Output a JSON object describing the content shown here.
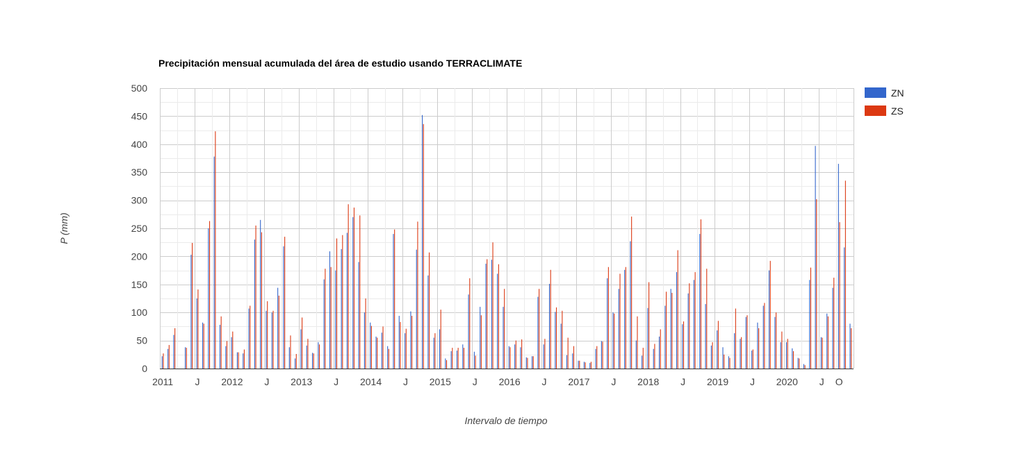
{
  "chart_data": {
    "type": "bar",
    "title": "Precipitación mensual acumulada del área de estudio usando TERRACLIMATE",
    "xlabel": "Intervalo de tiempo",
    "ylabel": "P (mm)",
    "ylim": [
      0,
      500
    ],
    "yticks": [
      "0",
      "50",
      "100",
      "150",
      "200",
      "250",
      "300",
      "350",
      "400",
      "450",
      "500"
    ],
    "grid": true,
    "legend_position": "right",
    "x_start": "2011-01",
    "x_tick_labels": [
      {
        "month": "2011-01",
        "label": "2011"
      },
      {
        "month": "2011-07",
        "label": "J"
      },
      {
        "month": "2012-01",
        "label": "2012"
      },
      {
        "month": "2012-07",
        "label": "J"
      },
      {
        "month": "2013-01",
        "label": "2013"
      },
      {
        "month": "2013-07",
        "label": "J"
      },
      {
        "month": "2014-01",
        "label": "2014"
      },
      {
        "month": "2014-07",
        "label": "J"
      },
      {
        "month": "2015-01",
        "label": "2015"
      },
      {
        "month": "2015-07",
        "label": "J"
      },
      {
        "month": "2016-01",
        "label": "2016"
      },
      {
        "month": "2016-07",
        "label": "J"
      },
      {
        "month": "2017-01",
        "label": "2017"
      },
      {
        "month": "2017-07",
        "label": "J"
      },
      {
        "month": "2018-01",
        "label": "2018"
      },
      {
        "month": "2018-07",
        "label": "J"
      },
      {
        "month": "2019-01",
        "label": "2019"
      },
      {
        "month": "2019-07",
        "label": "J"
      },
      {
        "month": "2020-01",
        "label": "2020"
      },
      {
        "month": "2020-07",
        "label": "J"
      },
      {
        "month": "2020-10",
        "label": "O"
      }
    ],
    "series": [
      {
        "name": "ZN",
        "color": "#3366cc",
        "values": [
          22,
          35,
          60,
          0,
          38,
          203,
          125,
          82,
          250,
          378,
          78,
          40,
          56,
          29,
          27,
          107,
          230,
          265,
          103,
          100,
          144,
          218,
          38,
          18,
          70,
          41,
          28,
          47,
          159,
          209,
          175,
          213,
          242,
          270,
          190,
          100,
          82,
          57,
          64,
          40,
          240,
          94,
          63,
          102,
          212,
          452,
          166,
          55,
          70,
          18,
          31,
          32,
          43,
          132,
          30,
          110,
          187,
          194,
          169,
          110,
          40,
          43,
          38,
          20,
          22,
          128,
          43,
          151,
          101,
          80,
          24,
          27,
          14,
          12,
          10,
          35,
          49,
          161,
          100,
          142,
          176,
          227,
          50,
          23,
          108,
          35,
          57,
          112,
          142,
          172,
          79,
          134,
          158,
          240,
          115,
          41,
          68,
          38,
          22,
          63,
          53,
          92,
          32,
          82,
          112,
          175,
          92,
          47,
          47,
          36,
          19,
          8,
          158,
          397,
          56,
          98,
          144,
          365,
          216,
          80
        ]
      },
      {
        "name": "ZS",
        "color": "#dc3912",
        "values": [
          27,
          42,
          72,
          0,
          37,
          224,
          141,
          80,
          263,
          423,
          93,
          49,
          66,
          29,
          34,
          112,
          255,
          243,
          120,
          103,
          130,
          235,
          59,
          26,
          91,
          53,
          27,
          43,
          178,
          181,
          232,
          238,
          293,
          287,
          273,
          125,
          76,
          55,
          75,
          35,
          248,
          83,
          71,
          94,
          262,
          436,
          207,
          63,
          105,
          15,
          37,
          37,
          37,
          161,
          23,
          95,
          195,
          225,
          186,
          142,
          38,
          50,
          52,
          19,
          22,
          142,
          53,
          176,
          109,
          103,
          55,
          40,
          14,
          11,
          12,
          40,
          48,
          181,
          98,
          169,
          181,
          271,
          93,
          37,
          154,
          44,
          70,
          137,
          135,
          211,
          84,
          152,
          172,
          266,
          178,
          47,
          85,
          25,
          19,
          107,
          56,
          95,
          34,
          72,
          117,
          192,
          100,
          66,
          53,
          31,
          18,
          6,
          180,
          302,
          55,
          93,
          162,
          261,
          335,
          72
        ]
      }
    ]
  }
}
